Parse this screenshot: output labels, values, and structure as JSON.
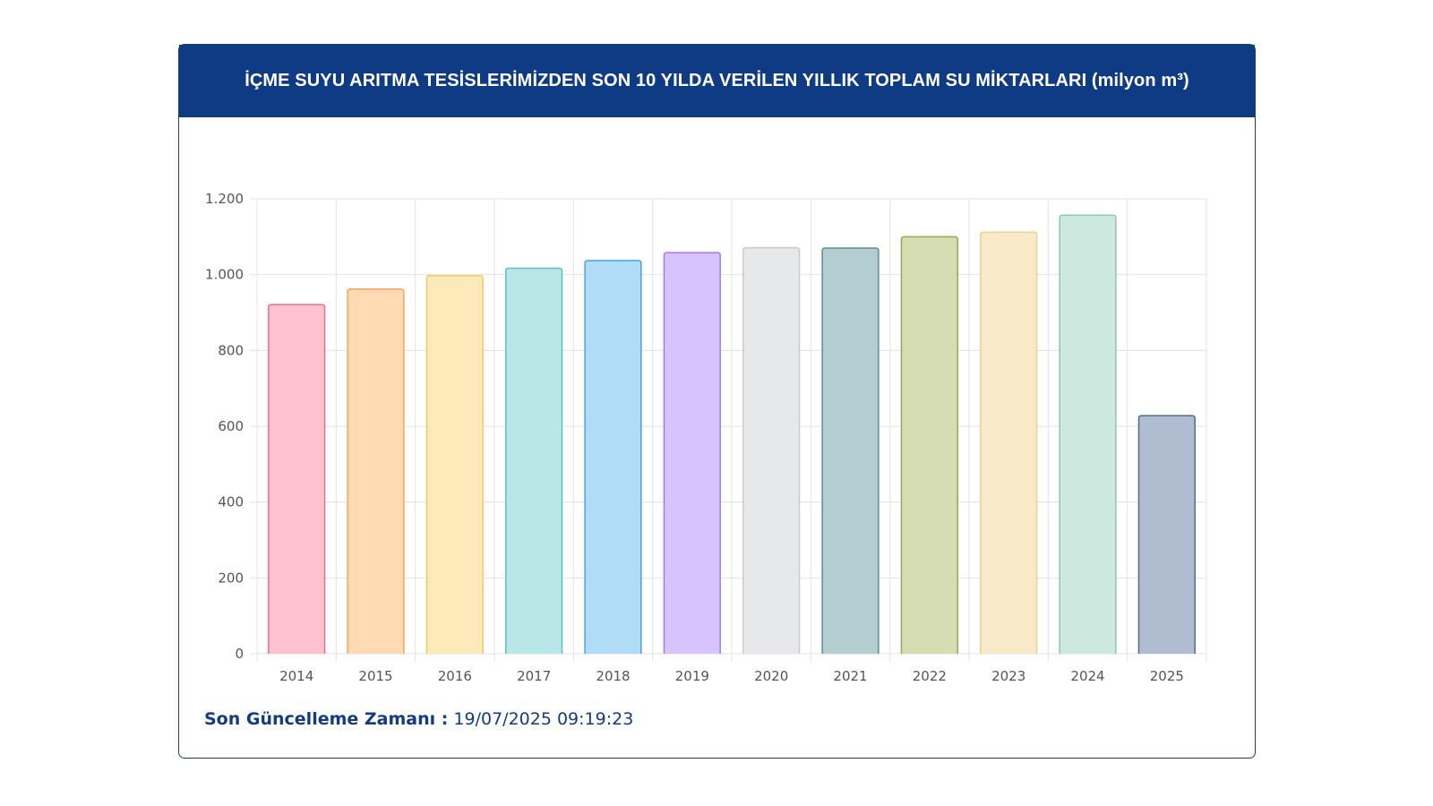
{
  "card": {
    "title": "İÇME SUYU ARITMA TESİSLERİMİZDEN SON 10 YILDA VERİLEN YILLIK TOPLAM SU MİKTARLARI (milyon m³)"
  },
  "footer": {
    "label": "Son Güncelleme Zamanı :",
    "value": "19/07/2025 09:19:23"
  },
  "colors": {
    "header_bg": "#0f3a84",
    "grid": "#e3e3e3",
    "tick_text": "#555555"
  },
  "chart_data": {
    "type": "bar",
    "title": "İÇME SUYU ARITMA TESİSLERİMİZDEN SON 10 YILDA VERİLEN YILLIK TOPLAM SU MİKTARLARI (milyon m³)",
    "xlabel": "",
    "ylabel": "",
    "categories": [
      "2014",
      "2015",
      "2016",
      "2017",
      "2018",
      "2019",
      "2020",
      "2021",
      "2022",
      "2023",
      "2024",
      "2025"
    ],
    "values": [
      921,
      962,
      997,
      1017,
      1037,
      1058,
      1071,
      1070,
      1100,
      1112,
      1157,
      628
    ],
    "ylim": [
      0,
      1200
    ],
    "yticks": [
      0,
      200,
      400,
      600,
      800,
      1000,
      1200
    ],
    "ytick_labels": [
      "0",
      "200",
      "400",
      "600",
      "800",
      "1.000",
      "1.200"
    ],
    "grid": true,
    "legend": "none",
    "bar_fills": [
      "#ffc2d1",
      "#ffdab3",
      "#fde9ba",
      "#b9e7e7",
      "#b0dcf8",
      "#d7c3fd",
      "#e7e8ea",
      "#b3cdd1",
      "#d7ddb2",
      "#f8e9c9",
      "#cde8de",
      "#b0bccf"
    ],
    "bar_strokes": [
      "#ef6d8f",
      "#f4a45b",
      "#f6c766",
      "#5ec2c2",
      "#4aa3e0",
      "#a57af2",
      "#c9cbcf",
      "#5f8d93",
      "#98a653",
      "#efd290",
      "#8cc9b1",
      "#516a96"
    ]
  }
}
